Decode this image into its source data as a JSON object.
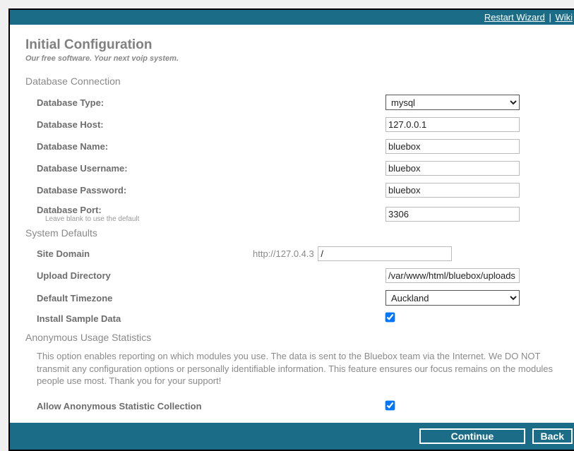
{
  "topbar": {
    "restart": "Restart Wizard",
    "wiki": "Wiki"
  },
  "header": {
    "title": "Initial Configuration",
    "subtitle": "Our free software. Your next voip system."
  },
  "sections": {
    "db": "Database Connection",
    "sys": "System Defaults",
    "anon": "Anonymous Usage Statistics"
  },
  "labels": {
    "dbtype": "Database Type:",
    "dbhost": "Database Host:",
    "dbname": "Database Name:",
    "dbuser": "Database Username:",
    "dbpass": "Database Password:",
    "dbport": "Database Port:",
    "dbport_help": "Leave blank to use the default",
    "domain": "Site Domain",
    "upload": "Upload Directory",
    "tz": "Default Timezone",
    "sample": "Install Sample Data",
    "allow": "Allow Anonymous Statistic Collection"
  },
  "values": {
    "dbtype": "mysql",
    "dbhost": "127.0.0.1",
    "dbname": "bluebox",
    "dbuser": "bluebox",
    "dbpass": "bluebox",
    "dbport": "3306",
    "domain_prefix": "http://127.0.4.3",
    "domain": "/",
    "upload": "/var/www/html/bluebox/uploads",
    "tz": "Auckland"
  },
  "anon_text": "This option enables reporting on which modules you use. The data is sent to the Bluebox team via the Internet. We DO NOT transmit any configuration options or personally identifiable information. This feature ensures our focus remains on the modules people use most. Thank you for your support!",
  "buttons": {
    "continue": "Continue",
    "back": "Back"
  }
}
